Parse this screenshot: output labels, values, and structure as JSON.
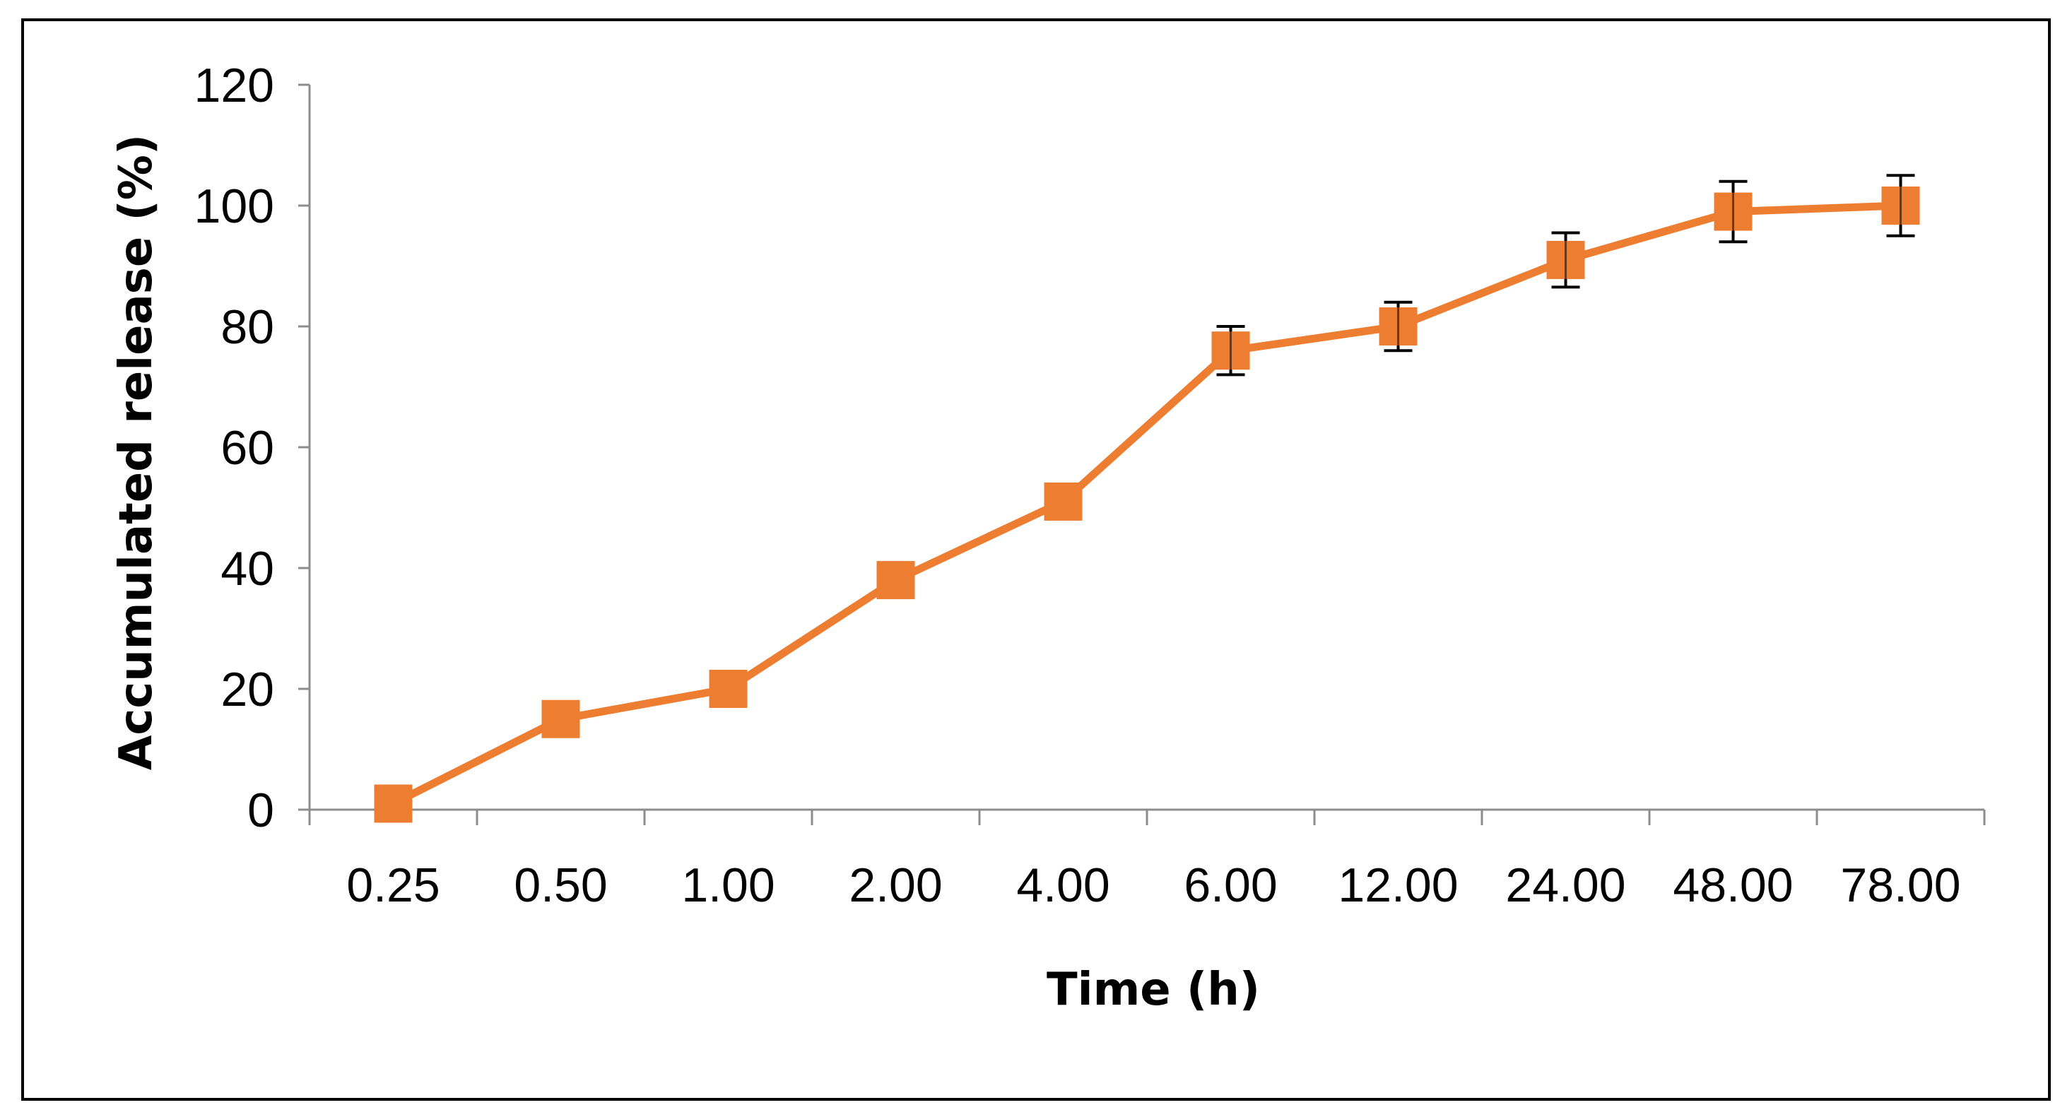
{
  "chart_data": {
    "type": "line",
    "title": "",
    "xlabel": "Time (h)",
    "ylabel": "Accumulated release (%)",
    "categories": [
      "0.25",
      "0.50",
      "1.00",
      "2.00",
      "4.00",
      "6.00",
      "12.00",
      "24.00",
      "48.00",
      "78.00"
    ],
    "series": [
      {
        "name": "Accumulated release",
        "values": [
          1,
          15,
          20,
          38,
          51,
          76,
          80,
          91,
          99,
          100
        ],
        "errors": [
          null,
          null,
          null,
          null,
          null,
          4,
          4,
          4.5,
          5,
          5
        ],
        "color": "#ed7d31",
        "marker": "square"
      }
    ],
    "ylim": [
      0,
      120
    ],
    "yticks": [
      "0",
      "20",
      "40",
      "60",
      "80",
      "100",
      "120"
    ],
    "grid": false,
    "legend": "none"
  },
  "colors": {
    "series": "#ed7d31",
    "axis": "#8c8c8c",
    "frame": "#000000",
    "error_bar": "#000000"
  }
}
